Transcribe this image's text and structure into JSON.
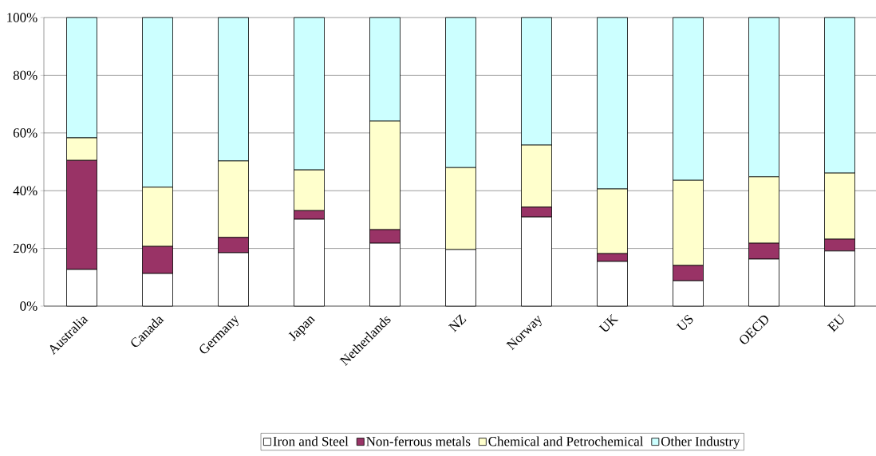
{
  "chart_data": {
    "type": "bar",
    "stacked": true,
    "categories": [
      "Australia",
      "Canada",
      "Germany",
      "Japan",
      "Netherlands",
      "NZ",
      "Norway",
      "UK",
      "US",
      "OECD",
      "EU"
    ],
    "series": [
      {
        "name": "Iron and Steel",
        "color": "#ffffff",
        "values": [
          12.7,
          11.3,
          18.5,
          30.1,
          21.8,
          19.6,
          30.9,
          15.5,
          8.8,
          16.3,
          19.1
        ]
      },
      {
        "name": "Non-ferrous metals",
        "color": "#993366",
        "values": [
          37.8,
          9.4,
          5.3,
          3.0,
          4.7,
          0,
          3.4,
          2.7,
          5.3,
          5.5,
          4.1
        ]
      },
      {
        "name": "Chemical and Petrochemical",
        "color": "#ffffcc",
        "values": [
          7.8,
          20.5,
          26.5,
          14.1,
          37.6,
          28.4,
          21.5,
          22.4,
          29.5,
          23.0,
          22.9
        ]
      },
      {
        "name": "Other Industry",
        "color": "#ccffff",
        "values": [
          41.7,
          58.8,
          49.7,
          52.8,
          35.9,
          52.0,
          44.2,
          59.4,
          56.4,
          55.2,
          53.9
        ]
      }
    ],
    "ylim": [
      0,
      100
    ],
    "yticks": [
      {
        "value": 0,
        "label": "0%"
      },
      {
        "value": 20,
        "label": "20%"
      },
      {
        "value": 40,
        "label": "40%"
      },
      {
        "value": 60,
        "label": "60%"
      },
      {
        "value": 80,
        "label": "80%"
      },
      {
        "value": 100,
        "label": "100%"
      }
    ],
    "grid": "y",
    "legend": "bottom"
  }
}
